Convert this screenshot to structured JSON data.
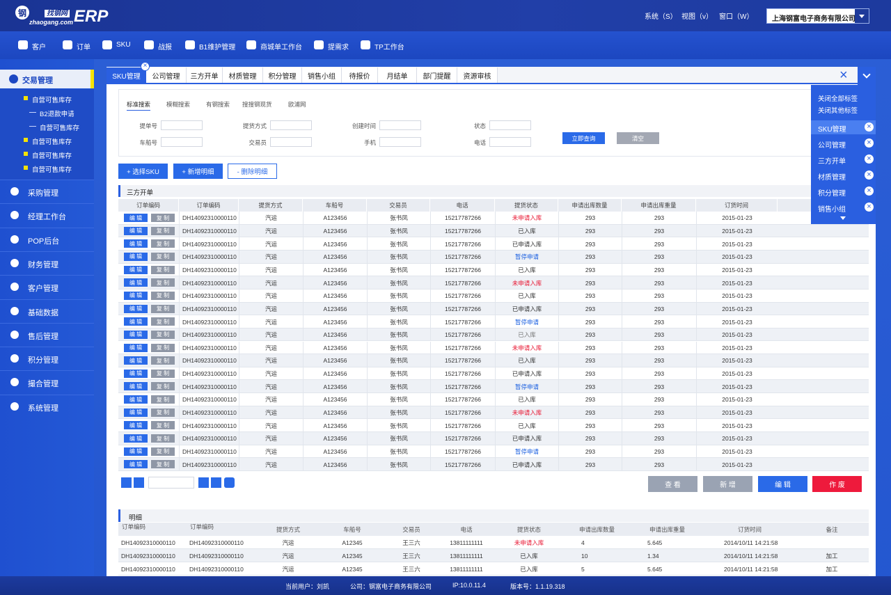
{
  "header": {
    "logo_mark": "钢",
    "logo_brand": "找钢网",
    "logo_domain": "zhaogang.com",
    "logo_product": "ERP",
    "menus": [
      "系统（S）",
      "视图（v）",
      "窗口（W）"
    ],
    "company": "上海钢富电子商务有限公司"
  },
  "nav": [
    "客户",
    "订单",
    "SKU",
    "战报",
    "B1维护管理",
    "商城单工作台",
    "提需求",
    "TP工作台"
  ],
  "sidebar": {
    "active": "交易管理",
    "children": [
      {
        "label": "自营可售库存",
        "level": 1
      },
      {
        "label": "B2退款申请",
        "level": 2
      },
      {
        "label": "自营可售库存",
        "level": 2
      },
      {
        "label": "自营可售库存",
        "level": 1
      },
      {
        "label": "自营可售库存",
        "level": 1
      },
      {
        "label": "自营可售库存",
        "level": 1
      }
    ],
    "items": [
      "采购管理",
      "经理工作台",
      "POP后台",
      "财务管理",
      "客户管理",
      "基础数据",
      "售后管理",
      "积分管理",
      "撮合管理",
      "系统管理"
    ]
  },
  "tabs": [
    "SKU管理",
    "公司管理",
    "三方开单",
    "材质管理",
    "积分管理",
    "销售小组",
    "待报价",
    "月结单",
    "部门提醒",
    "资源审核"
  ],
  "tab_menu": {
    "actions": [
      "关闭全部标签",
      "关闭其他标签"
    ],
    "items": [
      "SKU管理",
      "公司管理",
      "三方开单",
      "材质管理",
      "积分管理",
      "销售小组"
    ]
  },
  "search": {
    "tabs": [
      "标准搜索",
      "模糊搜索",
      "有钢搜索",
      "搜搜钢现货",
      "欧浦网"
    ],
    "fields": [
      [
        "提单号",
        "提货方式",
        "创建时间",
        "状态"
      ],
      [
        "车船号",
        "交易员",
        "手机",
        "电话"
      ]
    ],
    "buttons": [
      "立即查询",
      "清空"
    ]
  },
  "actions": [
    "+ 选择SKU",
    "+ 新增明细",
    "- 删除明细"
  ],
  "orders": {
    "title": "三方开单",
    "row_buttons": [
      "编 辑",
      "复 制"
    ],
    "headers": [
      "订单编码",
      "订单编码",
      "提货方式",
      "车船号",
      "交易员",
      "电话",
      "提货状态",
      "申请出库数量",
      "申请出库重量",
      "订货时间"
    ],
    "rows": [
      [
        "DH14092310000110",
        "汽运",
        "A123456",
        "张书凤",
        "15217787266",
        "未申请入库",
        293,
        293,
        "2015-01-23"
      ],
      [
        "DH14092310000110",
        "汽运",
        "A123456",
        "张书凤",
        "15217787266",
        "已入库",
        293,
        293,
        "2015-01-23"
      ],
      [
        "DH14092310000110",
        "汽运",
        "A123456",
        "张书凤",
        "15217787266",
        "已申请入库",
        293,
        293,
        "2015-01-23"
      ],
      [
        "DH14092310000110",
        "汽运",
        "A123456",
        "张书凤",
        "15217787266",
        "暂停申请",
        293,
        293,
        "2015-01-23"
      ],
      [
        "DH14092310000110",
        "汽运",
        "A123456",
        "张书凤",
        "15217787266",
        "已入库",
        293,
        293,
        "2015-01-23"
      ],
      [
        "DH14092310000110",
        "汽运",
        "A123456",
        "张书凤",
        "15217787266",
        "未申请入库",
        293,
        293,
        "2015-01-23"
      ],
      [
        "DH14092310000110",
        "汽运",
        "A123456",
        "张书凤",
        "15217787266",
        "已入库",
        293,
        293,
        "2015-01-23"
      ],
      [
        "DH14092310000110",
        "汽运",
        "A123456",
        "张书凤",
        "15217787266",
        "已申请入库",
        293,
        293,
        "2015-01-23"
      ],
      [
        "DH14092310000110",
        "汽运",
        "A123456",
        "张书凤",
        "15217787266",
        "暂停申请",
        293,
        293,
        "2015-01-23"
      ],
      [
        "DH14092310000110",
        "汽运",
        "A123456",
        "张书凤",
        "15217787266",
        "已入库",
        293,
        293,
        "2015-01-23"
      ],
      [
        "DH14092310000110",
        "汽运",
        "A123456",
        "张书凤",
        "15217787266",
        "未申请入库",
        293,
        293,
        "2015-01-23"
      ],
      [
        "DH14092310000110",
        "汽运",
        "A123456",
        "张书凤",
        "15217787266",
        "已入库",
        293,
        293,
        "2015-01-23"
      ],
      [
        "DH14092310000110",
        "汽运",
        "A123456",
        "张书凤",
        "15217787266",
        "已申请入库",
        293,
        293,
        "2015-01-23"
      ],
      [
        "DH14092310000110",
        "汽运",
        "A123456",
        "张书凤",
        "15217787266",
        "暂停申请",
        293,
        293,
        "2015-01-23"
      ],
      [
        "DH14092310000110",
        "汽运",
        "A123456",
        "张书凤",
        "15217787266",
        "已入库",
        293,
        293,
        "2015-01-23"
      ],
      [
        "DH14092310000110",
        "汽运",
        "A123456",
        "张书凤",
        "15217787266",
        "未申请入库",
        293,
        293,
        "2015-01-23"
      ],
      [
        "DH14092310000110",
        "汽运",
        "A123456",
        "张书凤",
        "15217787266",
        "已入库",
        293,
        293,
        "2015-01-23"
      ],
      [
        "DH14092310000110",
        "汽运",
        "A123456",
        "张书凤",
        "15217787266",
        "已申请入库",
        293,
        293,
        "2015-01-23"
      ],
      [
        "DH14092310000110",
        "汽运",
        "A123456",
        "张书凤",
        "15217787266",
        "暂停申请",
        293,
        293,
        "2015-01-23"
      ],
      [
        "DH14092310000110",
        "汽运",
        "A123456",
        "张书凤",
        "15217787266",
        "已申请入库",
        293,
        293,
        "2015-01-23"
      ]
    ],
    "status_colors": [
      "#e8132f",
      "#333",
      "#333",
      "#1a5fe0",
      "#333",
      "#e8132f",
      "#333",
      "#333",
      "#1a5fe0",
      "#777",
      "#e8132f",
      "#333",
      "#333",
      "#1a5fe0",
      "#333",
      "#e8132f",
      "#333",
      "#333",
      "#1a5fe0",
      "#333"
    ],
    "buttons": [
      "查 看",
      "新 增",
      "编 辑",
      "作 废"
    ]
  },
  "detail": {
    "title": "明细",
    "headers": [
      "订单编码",
      "订单编码",
      "提货方式",
      "车船号",
      "交易员",
      "电话",
      "提货状态",
      "申请出库数量",
      "申请出库重量",
      "订货时间",
      "备注"
    ],
    "rows": [
      [
        "DH14092310000110",
        "DH14092310000110",
        "汽运",
        "A12345",
        "王三六",
        "13811111111",
        "未申请入库",
        4,
        5.645,
        "2014/10/11 14:21:58",
        null
      ],
      [
        "DH14092310000110",
        "DH14092310000110",
        "汽运",
        "A12345",
        "王三六",
        "13811111111",
        "已入库",
        10,
        1.34,
        "2014/10/11 14:21:58",
        "加工"
      ],
      [
        "DH14092310000110",
        "DH14092310000110",
        "汽运",
        "A12345",
        "王三六",
        "13811111111",
        "已入库",
        5,
        5.645,
        "2014/10/11 14:21:58",
        "加工"
      ]
    ],
    "status_colors": [
      "#e8132f",
      "#333",
      "#333"
    ]
  },
  "footer": [
    "当前用户：刘凯",
    "公司：钢富电子商务有限公司",
    "IP:10.0.11.4",
    "版本号：1.1.19.318"
  ]
}
